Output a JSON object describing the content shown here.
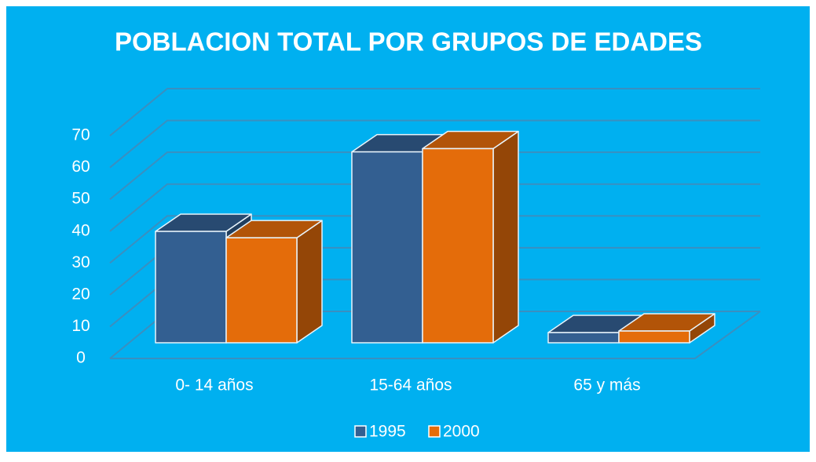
{
  "chart_data": {
    "type": "bar3d",
    "title": "POBLACION TOTAL POR GRUPOS DE EDADES",
    "categories": [
      "0- 14 años",
      "15-64 años",
      "65 y más"
    ],
    "series": [
      {
        "name": "1995",
        "color": "#335f91",
        "values": [
          35,
          60,
          3.2
        ]
      },
      {
        "name": "2000",
        "color": "#e46c0a",
        "values": [
          33,
          61,
          3.7
        ]
      }
    ],
    "ylim": [
      0,
      70
    ],
    "yticks": [
      0,
      10,
      20,
      30,
      40,
      50,
      60,
      70
    ],
    "grid": true,
    "legend": "bottom"
  }
}
